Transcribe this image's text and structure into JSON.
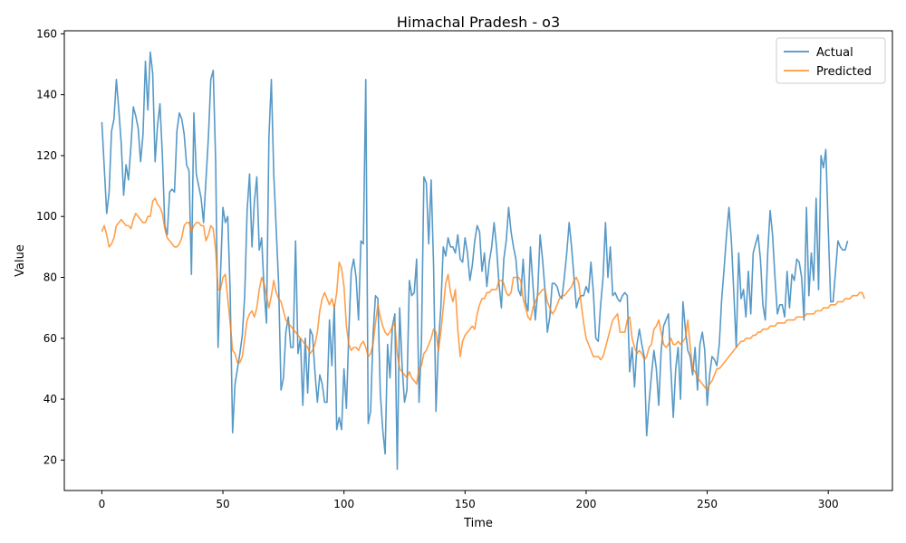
{
  "chart_data": {
    "type": "line",
    "title": "Himachal Pradesh - o3",
    "xlabel": "Time",
    "ylabel": "Value",
    "xlim": [
      -15.5,
      326.5
    ],
    "ylim": [
      10,
      161
    ],
    "xticks": [
      0,
      50,
      100,
      150,
      200,
      250,
      300
    ],
    "yticks": [
      20,
      40,
      60,
      80,
      100,
      120,
      140,
      160
    ],
    "grid": false,
    "legend_position": "top-right",
    "x_start": 0,
    "x_step": 1,
    "series": [
      {
        "name": "Actual",
        "color": "#1f77b4",
        "values": [
          131,
          116,
          101,
          108,
          128,
          132,
          145,
          135,
          124,
          107,
          117,
          112,
          123,
          136,
          133,
          129,
          118,
          127,
          151,
          135,
          154,
          147,
          118,
          130,
          137,
          120,
          97,
          94,
          108,
          109,
          108,
          128,
          134,
          132,
          127,
          117,
          115,
          81,
          134,
          114,
          110,
          106,
          98,
          112,
          126,
          145,
          148,
          118,
          57,
          81,
          103,
          98,
          100,
          75,
          29,
          45,
          50,
          55,
          61,
          74,
          102,
          114,
          90,
          105,
          113,
          89,
          93,
          76,
          65,
          126,
          145,
          114,
          96,
          78,
          43,
          47,
          62,
          67,
          57,
          57,
          92,
          55,
          60,
          38,
          60,
          42,
          63,
          61,
          49,
          39,
          48,
          45,
          39,
          39,
          66,
          51,
          71,
          30,
          34,
          30,
          50,
          37,
          62,
          82,
          86,
          80,
          66,
          92,
          91,
          145,
          32,
          36,
          61,
          74,
          73,
          42,
          30,
          22,
          58,
          47,
          64,
          68,
          17,
          70,
          51,
          39,
          43,
          79,
          74,
          75,
          86,
          39,
          59,
          113,
          111,
          91,
          112,
          84,
          36,
          58,
          70,
          90,
          87,
          93,
          90,
          90,
          88,
          94,
          86,
          85,
          93,
          88,
          79,
          84,
          92,
          97,
          95,
          82,
          88,
          77,
          85,
          90,
          98,
          90,
          78,
          70,
          86,
          92,
          103,
          95,
          90,
          86,
          76,
          74,
          86,
          72,
          69,
          90,
          78,
          66,
          75,
          94,
          86,
          76,
          62,
          67,
          78,
          78,
          77,
          74,
          73,
          80,
          88,
          98,
          90,
          80,
          70,
          73,
          74,
          74,
          77,
          75,
          85,
          75,
          60,
          59,
          71,
          80,
          98,
          80,
          90,
          74,
          75,
          73,
          72,
          74,
          75,
          74,
          49,
          57,
          44,
          58,
          63,
          58,
          54,
          28,
          39,
          48,
          56,
          50,
          38,
          56,
          64,
          66,
          68,
          50,
          34,
          50,
          57,
          40,
          72,
          63,
          56,
          54,
          48,
          57,
          43,
          58,
          62,
          56,
          38,
          48,
          54,
          53,
          51,
          58,
          73,
          83,
          94,
          103,
          92,
          75,
          57,
          88,
          73,
          76,
          67,
          82,
          68,
          88,
          91,
          94,
          86,
          71,
          66,
          88,
          102,
          94,
          80,
          68,
          71,
          71,
          67,
          82,
          70,
          81,
          79,
          86,
          85,
          80,
          66,
          103,
          74,
          88,
          79,
          106,
          76,
          120,
          116,
          122,
          96,
          72,
          72,
          82,
          92,
          90,
          89,
          89,
          92
        ]
      },
      {
        "name": "Predicted",
        "color": "#ff7f0e",
        "values": [
          95,
          97,
          94,
          90,
          91,
          93,
          97,
          98,
          99,
          98,
          97,
          97,
          96,
          99,
          101,
          100,
          99,
          98,
          98,
          100,
          100,
          105,
          106,
          104,
          103,
          101,
          96,
          93,
          92,
          91,
          90,
          90,
          91,
          93,
          97,
          98,
          98,
          95,
          97,
          98,
          98,
          97,
          97,
          92,
          94,
          97,
          96,
          89,
          76,
          76,
          80,
          81,
          73,
          65,
          56,
          55,
          52,
          52,
          54,
          60,
          66,
          68,
          69,
          67,
          70,
          76,
          80,
          78,
          74,
          70,
          74,
          79,
          75,
          73,
          72,
          69,
          66,
          65,
          64,
          63,
          62,
          61,
          60,
          59,
          58,
          57,
          55,
          56,
          58,
          62,
          69,
          73,
          75,
          73,
          71,
          73,
          70,
          75,
          85,
          83,
          77,
          64,
          58,
          56,
          57,
          57,
          56,
          58,
          59,
          57,
          54,
          55,
          58,
          65,
          71,
          67,
          64,
          62,
          61,
          62,
          64,
          65,
          55,
          50,
          49,
          48,
          47,
          49,
          47,
          46,
          45,
          50,
          51,
          55,
          56,
          58,
          60,
          63,
          62,
          56,
          62,
          70,
          78,
          81,
          75,
          72,
          76,
          63,
          54,
          59,
          61,
          62,
          63,
          64,
          63,
          68,
          71,
          73,
          73,
          75,
          75,
          76,
          76,
          76,
          79,
          79,
          78,
          75,
          74,
          75,
          80,
          80,
          80,
          79,
          73,
          70,
          67,
          66,
          70,
          72,
          74,
          75,
          76,
          76,
          72,
          70,
          68,
          69,
          71,
          73,
          74,
          74,
          75,
          76,
          77,
          79,
          80,
          78,
          71,
          65,
          60,
          58,
          56,
          54,
          54,
          54,
          53,
          54,
          57,
          60,
          63,
          66,
          67,
          68,
          62,
          62,
          62,
          66,
          67,
          60,
          57,
          55,
          56,
          55,
          53,
          54,
          57,
          58,
          63,
          64,
          66,
          62,
          58,
          57,
          58,
          60,
          58,
          58,
          59,
          58,
          59,
          60,
          66,
          57,
          50,
          49,
          47,
          46,
          45,
          44,
          43,
          45,
          46,
          48,
          50,
          50,
          51,
          52,
          53,
          54,
          55,
          56,
          57,
          58,
          59,
          59,
          60,
          60,
          60,
          61,
          61,
          62,
          62,
          63,
          63,
          63,
          64,
          64,
          64,
          65,
          65,
          65,
          65,
          66,
          66,
          66,
          66,
          67,
          67,
          67,
          67,
          68,
          68,
          68,
          68,
          69,
          69,
          69,
          70,
          70,
          70,
          71,
          71,
          71,
          72,
          72,
          72,
          73,
          73,
          73,
          74,
          74,
          74,
          75,
          75,
          73
        ]
      }
    ]
  }
}
